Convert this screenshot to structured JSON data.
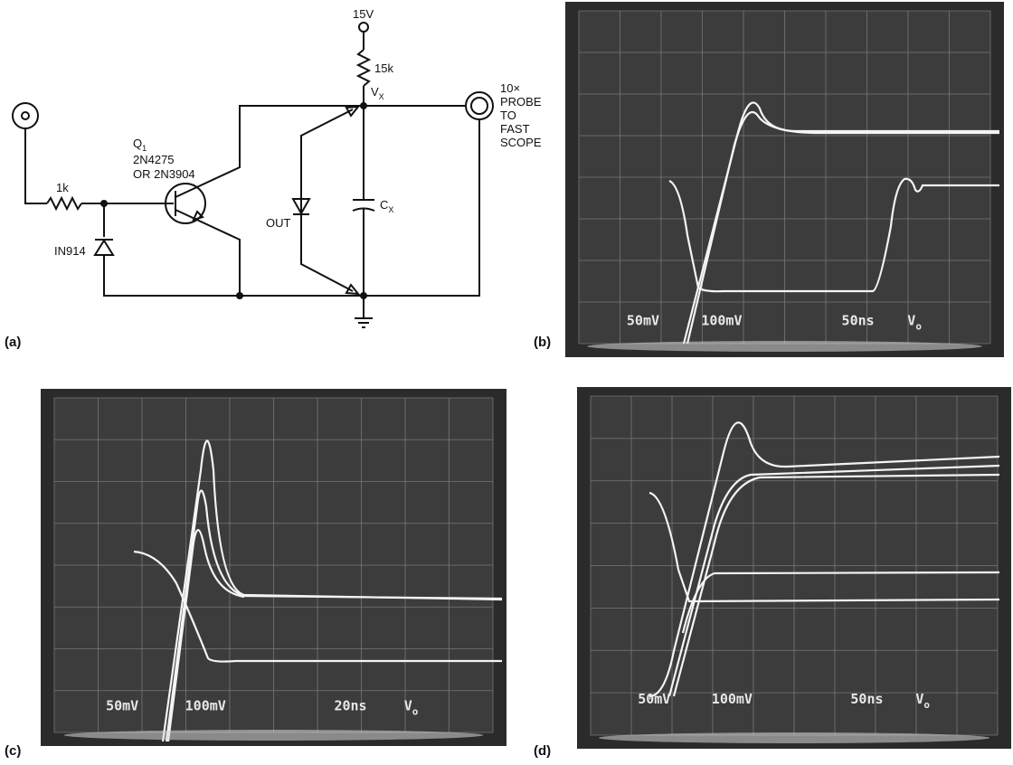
{
  "schematic": {
    "label": "(a)",
    "supply": "15V",
    "resistor_top": "15k",
    "node": "V",
    "node_sub": "X",
    "probe": [
      "10×",
      "PROBE",
      "TO",
      "FAST",
      "SCOPE"
    ],
    "transistor": "Q",
    "transistor_sub": "1",
    "part1": "2N4275",
    "part2": "OR 2N3904",
    "resistor_in": "1k",
    "diode": "IN914",
    "out": "OUT",
    "cap": "C",
    "cap_sub": "X"
  },
  "scopes": [
    {
      "label": "(b)",
      "readouts": [
        "50mV",
        "100mV",
        "50ns"
      ],
      "probe_mark": "V",
      "probe_sub": "o"
    },
    {
      "label": "(c)",
      "readouts": [
        "50mV",
        "100mV",
        "20ns"
      ],
      "probe_mark": "V",
      "probe_sub": "o"
    },
    {
      "label": "(d)",
      "readouts": [
        "50mV",
        "100mV",
        "50ns"
      ],
      "probe_mark": "V",
      "probe_sub": "o"
    }
  ]
}
